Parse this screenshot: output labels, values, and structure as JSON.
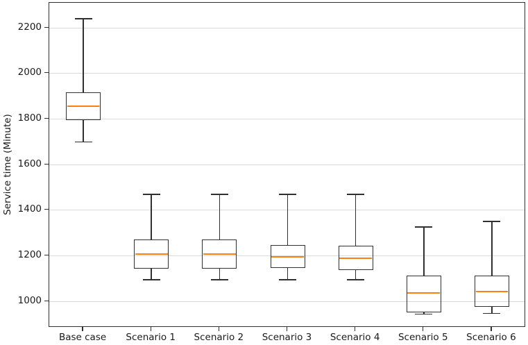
{
  "chart_data": {
    "type": "boxplot",
    "title": "",
    "xlabel": "",
    "ylabel": "Service time (Minute)",
    "categories": [
      "Base case",
      "Scenario 1",
      "Scenario 2",
      "Scenario 3",
      "Scenario 4",
      "Scenario 5",
      "Scenario 6"
    ],
    "yticks": [
      1000,
      1200,
      1400,
      1600,
      1800,
      2000,
      2200
    ],
    "ylim": [
      885,
      2310
    ],
    "grid": "horizontal-only",
    "legend": "none",
    "colors": {
      "box_line": "#2f2f2f",
      "median_line": "#ff7f0e",
      "gridline": "#d9d9d9",
      "axis_text": "#1a1a1a",
      "background": "#ffffff"
    },
    "series": [
      {
        "category": "Base case",
        "whisker_low": 1700,
        "q1": 1795,
        "median": 1855,
        "q3": 1918,
        "whisker_high": 2240
      },
      {
        "category": "Scenario 1",
        "whisker_low": 1095,
        "q1": 1143,
        "median": 1207,
        "q3": 1273,
        "whisker_high": 1470
      },
      {
        "category": "Scenario 2",
        "whisker_low": 1095,
        "q1": 1143,
        "median": 1208,
        "q3": 1273,
        "whisker_high": 1470
      },
      {
        "category": "Scenario 3",
        "whisker_low": 1095,
        "q1": 1148,
        "median": 1195,
        "q3": 1247,
        "whisker_high": 1470
      },
      {
        "category": "Scenario 4",
        "whisker_low": 1095,
        "q1": 1137,
        "median": 1188,
        "q3": 1243,
        "whisker_high": 1470
      },
      {
        "category": "Scenario 5",
        "whisker_low": 944,
        "q1": 953,
        "median": 1036,
        "q3": 1114,
        "whisker_high": 1326
      },
      {
        "category": "Scenario 6",
        "whisker_low": 947,
        "q1": 977,
        "median": 1044,
        "q3": 1112,
        "whisker_high": 1351
      }
    ]
  }
}
